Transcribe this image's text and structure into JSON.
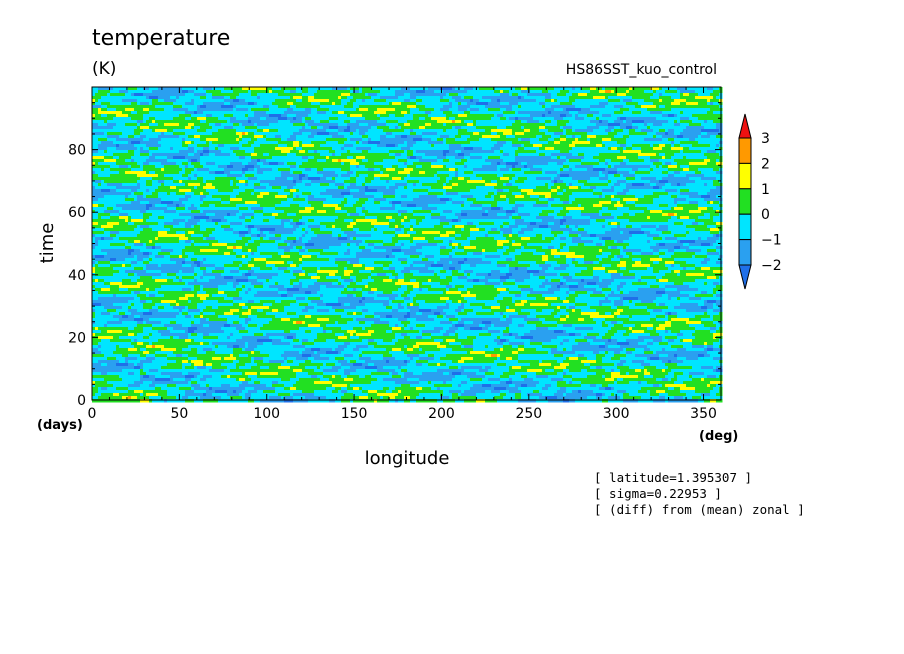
{
  "chart_data": {
    "type": "heatmap",
    "title": "temperature",
    "units": "(K)",
    "dataset_label": "HS86SST_kuo_control",
    "xlabel": "longitude",
    "x_unit": "(deg)",
    "ylabel": "time",
    "y_unit": "(days)",
    "xlim": [
      0,
      360
    ],
    "ylim": [
      0,
      100
    ],
    "x_ticks": [
      0,
      50,
      100,
      150,
      200,
      250,
      300,
      350
    ],
    "y_ticks": [
      0,
      20,
      40,
      60,
      80
    ],
    "x_tick_labels": [
      "0",
      "50",
      "100",
      "150",
      "200",
      "250",
      "300",
      "350"
    ],
    "y_tick_labels": [
      "0",
      "20",
      "40",
      "60",
      "80"
    ],
    "colorbar": {
      "levels": [
        -2,
        -1,
        0,
        1,
        2,
        3
      ],
      "labels": [
        "3",
        "2",
        "1",
        "0",
        "−1",
        "−2"
      ],
      "colors": [
        "#1f6fe8",
        "#2aa0f0",
        "#00e5ff",
        "#22e022",
        "#ffff00",
        "#ff9900",
        "#ee1111"
      ],
      "extend": "both"
    },
    "annotations": [
      "[ latitude=1.395307 ]",
      "[ sigma=0.22953 ]",
      "[ (diff) from (mean) zonal ]"
    ]
  }
}
